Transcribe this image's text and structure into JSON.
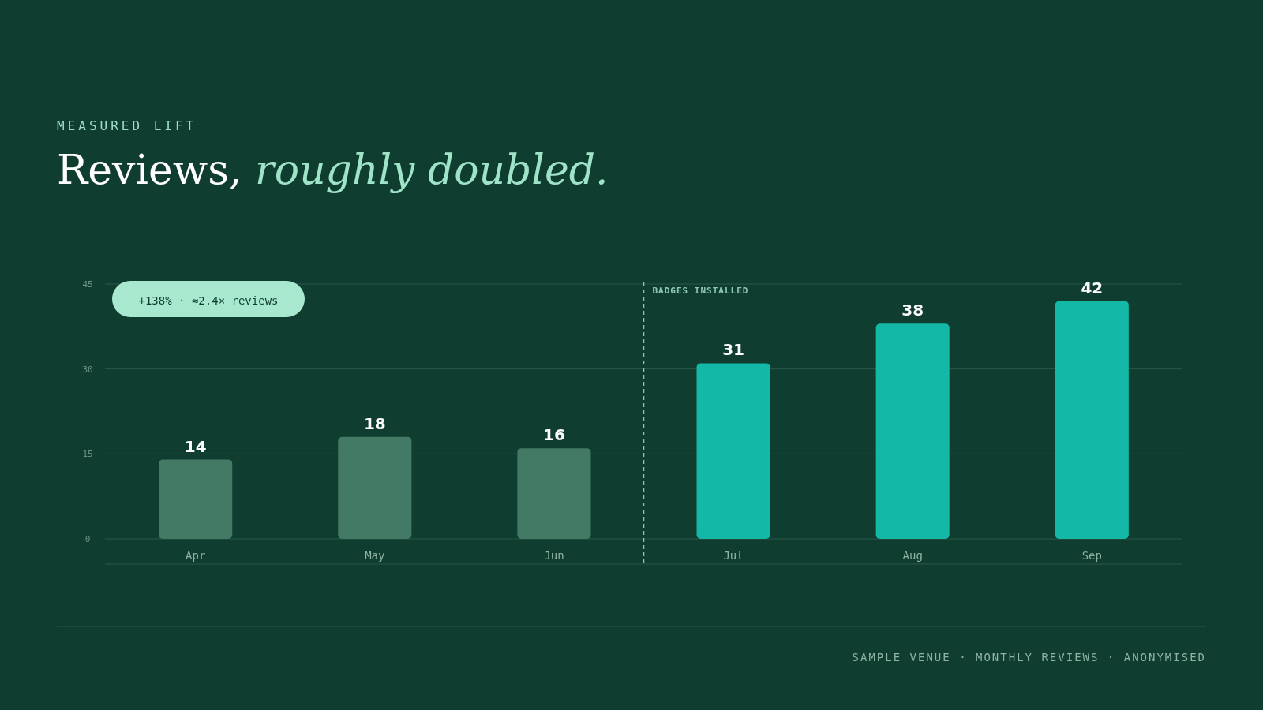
{
  "chart_data": {
    "type": "bar",
    "subtitle": "MEASURED LIFT",
    "title": "Reviews, roughly doubled.",
    "categories": [
      "Apr",
      "May",
      "Jun",
      "Jul",
      "Aug",
      "Sep"
    ],
    "values": [
      14,
      18,
      16,
      31,
      38,
      42
    ],
    "colors": [
      "#437a66",
      "#437a66",
      "#437a66",
      "#13b8a6",
      "#13b8a6",
      "#13b8a6"
    ],
    "ylim": [
      0,
      45
    ],
    "yticks": [
      0,
      15,
      30,
      45
    ],
    "grid": "y",
    "data_labels": true,
    "ref_lines": [
      {
        "axis": "x",
        "value": "Jul",
        "label": "BADGES INSTALLED",
        "line_style": "dashed",
        "color": "#8fc9b5"
      }
    ],
    "annotations": [
      "+138% · ≈2.4× reviews",
      "SAMPLE VENUE · MONTHLY REVIEWS · ANONYMISED"
    ]
  }
}
